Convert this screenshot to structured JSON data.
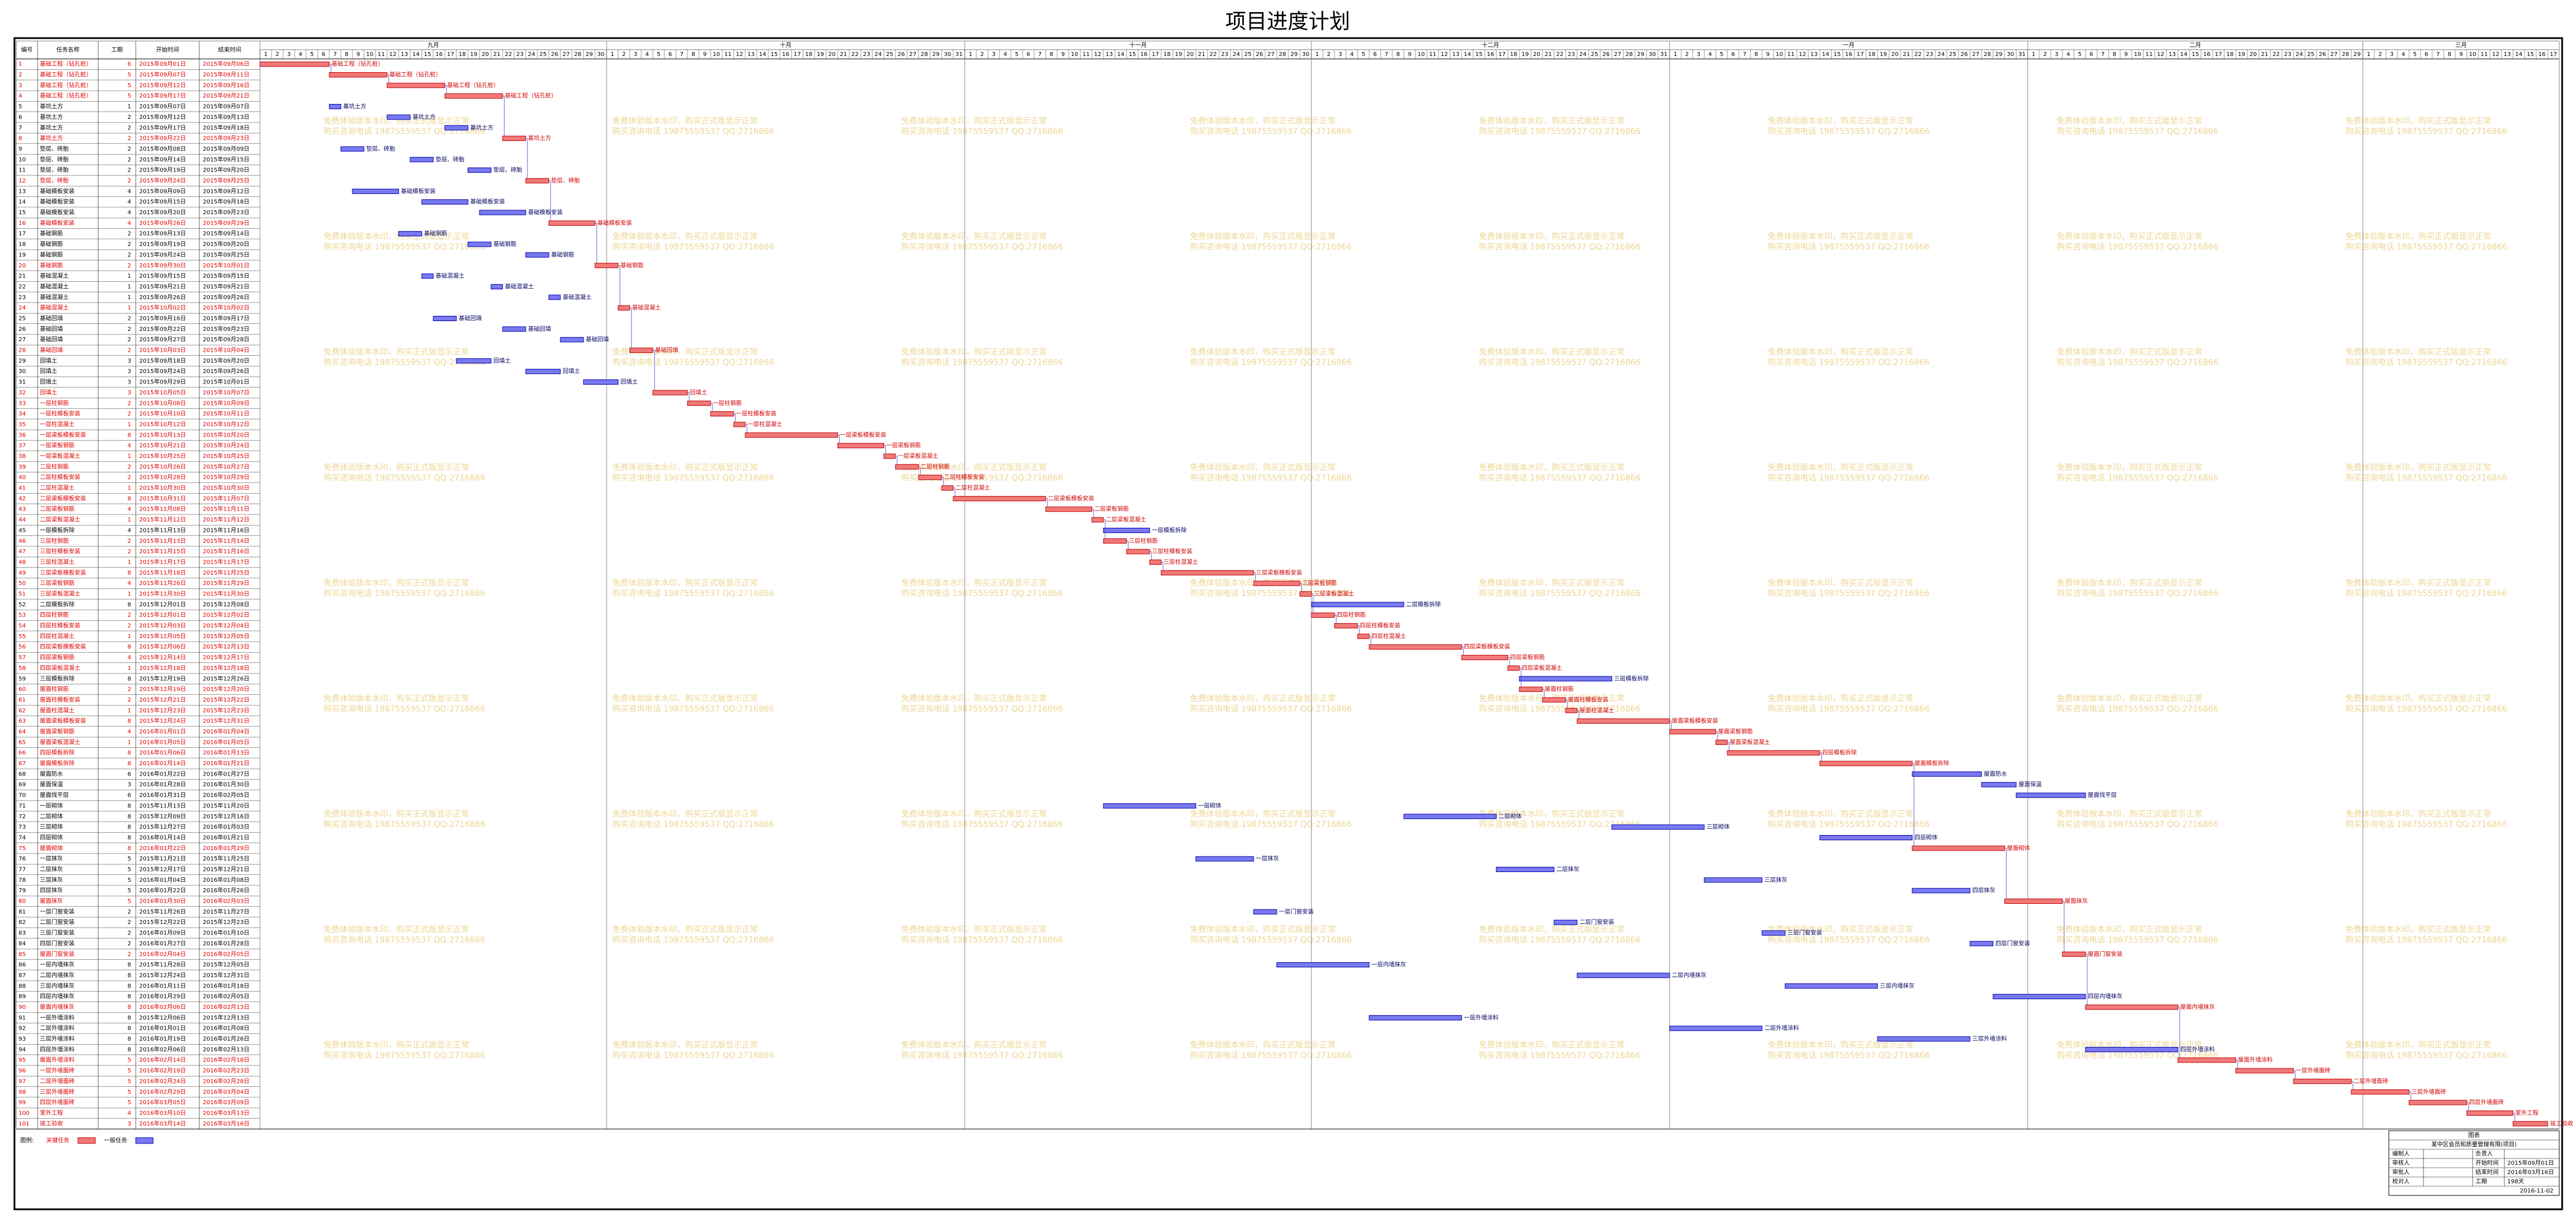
{
  "title": "项目进度计划",
  "columns": [
    "编号",
    "任务名称",
    "工期",
    "开始时间",
    "结束时间"
  ],
  "months": [
    {
      "name": "九月",
      "days": [
        1,
        2,
        3,
        4,
        5,
        6,
        7,
        8,
        9,
        10,
        11,
        12,
        13,
        14,
        15,
        16,
        17,
        18,
        19,
        20,
        21,
        22,
        23,
        24,
        25,
        26,
        27,
        28,
        29,
        30
      ]
    },
    {
      "name": "十月",
      "days": [
        1,
        2,
        3,
        4,
        5,
        6,
        7,
        8,
        9,
        10,
        11,
        12,
        13,
        14,
        15,
        16,
        17,
        18,
        19,
        20,
        21,
        22,
        23,
        24,
        25,
        26,
        27,
        28,
        29,
        30,
        31
      ]
    },
    {
      "name": "十一月",
      "days": [
        1,
        2,
        3,
        4,
        5,
        6,
        7,
        8,
        9,
        10,
        11,
        12,
        13,
        14,
        15,
        16,
        17,
        18,
        19,
        20,
        21,
        22,
        23,
        24,
        25,
        26,
        27,
        28,
        29,
        30
      ]
    },
    {
      "name": "十二月",
      "days": [
        1,
        2,
        3,
        4,
        5,
        6,
        7,
        8,
        9,
        10,
        11,
        12,
        13,
        14,
        15,
        16,
        17,
        18,
        19,
        20,
        21,
        22,
        23,
        24,
        25,
        26,
        27,
        28,
        29,
        30,
        31
      ]
    },
    {
      "name": "一月",
      "days": [
        1,
        2,
        3,
        4,
        5,
        6,
        7,
        8,
        9,
        10,
        11,
        12,
        13,
        14,
        15,
        16,
        17,
        18,
        19,
        20,
        21,
        22,
        23,
        24,
        25,
        26,
        27,
        28,
        29,
        30,
        31
      ]
    },
    {
      "name": "二月",
      "days": [
        1,
        2,
        3,
        4,
        5,
        6,
        7,
        8,
        9,
        10,
        11,
        12,
        13,
        14,
        15,
        16,
        17,
        18,
        19,
        20,
        21,
        22,
        23,
        24,
        25,
        26,
        27,
        28,
        29
      ]
    },
    {
      "name": "三月",
      "days": [
        1,
        2,
        3,
        4,
        5,
        6,
        7,
        8,
        9,
        10,
        11,
        12,
        13,
        14,
        15,
        16,
        17
      ]
    }
  ],
  "tasks": [
    [
      1,
      "基础工程（钻孔桩）",
      6,
      "2015年09月01日",
      "2015年09月06日",
      true
    ],
    [
      2,
      "基础工程（钻孔桩）",
      5,
      "2015年09月07日",
      "2015年09月11日",
      true
    ],
    [
      3,
      "基础工程（钻孔桩）",
      5,
      "2015年09月12日",
      "2015年09月16日",
      true
    ],
    [
      4,
      "基础工程（钻孔桩）",
      5,
      "2015年09月17日",
      "2015年09月21日",
      true
    ],
    [
      5,
      "基坑土方",
      1,
      "2015年09月07日",
      "2015年09月07日",
      false
    ],
    [
      6,
      "基坑土方",
      2,
      "2015年09月12日",
      "2015年09月13日",
      false
    ],
    [
      7,
      "基坑土方",
      2,
      "2015年09月17日",
      "2015年09月18日",
      false
    ],
    [
      8,
      "基坑土方",
      2,
      "2015年09月22日",
      "2015年09月23日",
      true
    ],
    [
      9,
      "垫层、砖胎",
      2,
      "2015年09月08日",
      "2015年09月09日",
      false
    ],
    [
      10,
      "垫层、砖胎",
      2,
      "2015年09月14日",
      "2015年09月15日",
      false
    ],
    [
      11,
      "垫层、砖胎",
      2,
      "2015年09月19日",
      "2015年09月20日",
      false
    ],
    [
      12,
      "垫层、砖胎",
      2,
      "2015年09月24日",
      "2015年09月25日",
      true
    ],
    [
      13,
      "基础模板安装",
      4,
      "2015年09月09日",
      "2015年09月12日",
      false
    ],
    [
      14,
      "基础模板安装",
      4,
      "2015年09月15日",
      "2015年09月18日",
      false
    ],
    [
      15,
      "基础模板安装",
      4,
      "2015年09月20日",
      "2015年09月23日",
      false
    ],
    [
      16,
      "基础模板安装",
      4,
      "2015年09月26日",
      "2015年09月29日",
      true
    ],
    [
      17,
      "基础钢筋",
      2,
      "2015年09月13日",
      "2015年09月14日",
      false
    ],
    [
      18,
      "基础钢筋",
      2,
      "2015年09月19日",
      "2015年09月20日",
      false
    ],
    [
      19,
      "基础钢筋",
      2,
      "2015年09月24日",
      "2015年09月25日",
      false
    ],
    [
      20,
      "基础钢筋",
      2,
      "2015年09月30日",
      "2015年10月01日",
      true
    ],
    [
      21,
      "基础混凝土",
      1,
      "2015年09月15日",
      "2015年09月15日",
      false
    ],
    [
      22,
      "基础混凝土",
      1,
      "2015年09月21日",
      "2015年09月21日",
      false
    ],
    [
      23,
      "基础混凝土",
      1,
      "2015年09月26日",
      "2015年09月26日",
      false
    ],
    [
      24,
      "基础混凝土",
      1,
      "2015年10月02日",
      "2015年10月02日",
      true
    ],
    [
      25,
      "基础回填",
      2,
      "2015年09月16日",
      "2015年09月17日",
      false
    ],
    [
      26,
      "基础回填",
      2,
      "2015年09月22日",
      "2015年09月23日",
      false
    ],
    [
      27,
      "基础回填",
      2,
      "2015年09月27日",
      "2015年09月28日",
      false
    ],
    [
      28,
      "基础回填",
      2,
      "2015年10月03日",
      "2015年10月04日",
      true
    ],
    [
      29,
      "回填土",
      3,
      "2015年09月18日",
      "2015年09月20日",
      false
    ],
    [
      30,
      "回填土",
      3,
      "2015年09月24日",
      "2015年09月26日",
      false
    ],
    [
      31,
      "回填土",
      3,
      "2015年09月29日",
      "2015年10月01日",
      false
    ],
    [
      32,
      "回填土",
      3,
      "2015年10月05日",
      "2015年10月07日",
      true
    ],
    [
      33,
      "一层柱钢筋",
      2,
      "2015年10月08日",
      "2015年10月09日",
      true
    ],
    [
      34,
      "一层柱模板安装",
      2,
      "2015年10月10日",
      "2015年10月11日",
      true
    ],
    [
      35,
      "一层柱混凝土",
      1,
      "2015年10月12日",
      "2015年10月12日",
      true
    ],
    [
      36,
      "一层梁板模板安装",
      8,
      "2015年10月13日",
      "2015年10月20日",
      true
    ],
    [
      37,
      "一层梁板钢筋",
      4,
      "2015年10月21日",
      "2015年10月24日",
      true
    ],
    [
      38,
      "一层梁板混凝土",
      1,
      "2015年10月25日",
      "2015年10月25日",
      true
    ],
    [
      39,
      "二层柱钢筋",
      2,
      "2015年10月26日",
      "2015年10月27日",
      true
    ],
    [
      40,
      "二层柱模板安装",
      2,
      "2015年10月28日",
      "2015年10月29日",
      true
    ],
    [
      41,
      "二层柱混凝土",
      1,
      "2015年10月30日",
      "2015年10月30日",
      true
    ],
    [
      42,
      "二层梁板模板安装",
      8,
      "2015年10月31日",
      "2015年11月07日",
      true
    ],
    [
      43,
      "二层梁板钢筋",
      4,
      "2015年11月08日",
      "2015年11月11日",
      true
    ],
    [
      44,
      "二层梁板混凝土",
      1,
      "2015年11月12日",
      "2015年11月12日",
      true
    ],
    [
      45,
      "一层模板拆除",
      4,
      "2015年11月13日",
      "2015年11月16日",
      false
    ],
    [
      46,
      "三层柱钢筋",
      2,
      "2015年11月13日",
      "2015年11月14日",
      true
    ],
    [
      47,
      "三层柱模板安装",
      2,
      "2015年11月15日",
      "2015年11月16日",
      true
    ],
    [
      48,
      "三层柱混凝土",
      1,
      "2015年11月17日",
      "2015年11月17日",
      true
    ],
    [
      49,
      "三层梁板模板安装",
      8,
      "2015年11月18日",
      "2015年11月25日",
      true
    ],
    [
      50,
      "三层梁板钢筋",
      4,
      "2015年11月26日",
      "2015年11月29日",
      true
    ],
    [
      51,
      "三层梁板混凝土",
      1,
      "2015年11月30日",
      "2015年11月30日",
      true
    ],
    [
      52,
      "二层模板拆除",
      8,
      "2015年12月01日",
      "2015年12月08日",
      false
    ],
    [
      53,
      "四层柱钢筋",
      2,
      "2015年12月01日",
      "2015年12月02日",
      true
    ],
    [
      54,
      "四层柱模板安装",
      2,
      "2015年12月03日",
      "2015年12月04日",
      true
    ],
    [
      55,
      "四层柱混凝土",
      1,
      "2015年12月05日",
      "2015年12月05日",
      true
    ],
    [
      56,
      "四层梁板模板安装",
      8,
      "2015年12月06日",
      "2015年12月13日",
      true
    ],
    [
      57,
      "四层梁板钢筋",
      4,
      "2015年12月14日",
      "2015年12月17日",
      true
    ],
    [
      58,
      "四层梁板混凝土",
      1,
      "2015年12月18日",
      "2015年12月18日",
      true
    ],
    [
      59,
      "三层模板拆除",
      8,
      "2015年12月19日",
      "2015年12月26日",
      false
    ],
    [
      60,
      "屋面柱钢筋",
      2,
      "2015年12月19日",
      "2015年12月20日",
      true
    ],
    [
      61,
      "屋面柱模板安装",
      2,
      "2015年12月21日",
      "2015年12月22日",
      true
    ],
    [
      62,
      "屋面柱混凝土",
      1,
      "2015年12月23日",
      "2015年12月23日",
      true
    ],
    [
      63,
      "屋面梁板模板安装",
      8,
      "2015年12月24日",
      "2015年12月31日",
      true
    ],
    [
      64,
      "屋面梁板钢筋",
      4,
      "2016年01月01日",
      "2016年01月04日",
      true
    ],
    [
      65,
      "屋面梁板混凝土",
      1,
      "2016年01月05日",
      "2016年01月05日",
      true
    ],
    [
      66,
      "四层模板拆除",
      8,
      "2016年01月06日",
      "2016年01月13日",
      true
    ],
    [
      67,
      "屋面模板拆除",
      8,
      "2016年01月14日",
      "2016年01月21日",
      true
    ],
    [
      68,
      "屋面防水",
      6,
      "2016年01月22日",
      "2016年01月27日",
      false
    ],
    [
      69,
      "屋面保温",
      3,
      "2016年01月28日",
      "2016年01月30日",
      false
    ],
    [
      70,
      "屋面找平层",
      6,
      "2016年01月31日",
      "2016年02月05日",
      false
    ],
    [
      71,
      "一层砌体",
      8,
      "2015年11月13日",
      "2015年11月20日",
      false
    ],
    [
      72,
      "二层砌体",
      8,
      "2015年12月09日",
      "2015年12月16日",
      false
    ],
    [
      73,
      "三层砌体",
      8,
      "2015年12月27日",
      "2016年01月03日",
      false
    ],
    [
      74,
      "四层砌体",
      8,
      "2016年01月14日",
      "2016年01月21日",
      false
    ],
    [
      75,
      "屋面砌体",
      8,
      "2016年01月22日",
      "2016年01月29日",
      true
    ],
    [
      76,
      "一层抹灰",
      5,
      "2015年11月21日",
      "2015年11月25日",
      false
    ],
    [
      77,
      "二层抹灰",
      5,
      "2015年12月17日",
      "2015年12月21日",
      false
    ],
    [
      78,
      "三层抹灰",
      5,
      "2016年01月04日",
      "2016年01月08日",
      false
    ],
    [
      79,
      "四层抹灰",
      5,
      "2016年01月22日",
      "2016年01月26日",
      false
    ],
    [
      80,
      "屋面抹灰",
      5,
      "2016年01月30日",
      "2016年02月03日",
      true
    ],
    [
      81,
      "一层门窗安装",
      2,
      "2015年11月26日",
      "2015年11月27日",
      false
    ],
    [
      82,
      "二层门窗安装",
      2,
      "2015年12月22日",
      "2015年12月23日",
      false
    ],
    [
      83,
      "三层门窗安装",
      2,
      "2016年01月09日",
      "2016年01月10日",
      false
    ],
    [
      84,
      "四层门窗安装",
      2,
      "2016年01月27日",
      "2016年01月28日",
      false
    ],
    [
      85,
      "屋面门窗安装",
      2,
      "2016年02月04日",
      "2016年02月05日",
      true
    ],
    [
      86,
      "一层内墙抹灰",
      8,
      "2015年11月28日",
      "2015年12月05日",
      false
    ],
    [
      87,
      "二层内墙抹灰",
      8,
      "2015年12月24日",
      "2015年12月31日",
      false
    ],
    [
      88,
      "三层内墙抹灰",
      8,
      "2016年01月11日",
      "2016年01月18日",
      false
    ],
    [
      89,
      "四层内墙抹灰",
      8,
      "2016年01月29日",
      "2016年02月05日",
      false
    ],
    [
      90,
      "屋面内墙抹灰",
      8,
      "2016年02月06日",
      "2016年02月13日",
      true
    ],
    [
      91,
      "一层外墙涂料",
      8,
      "2015年12月06日",
      "2015年12月13日",
      false
    ],
    [
      92,
      "二层外墙涂料",
      8,
      "2016年01月01日",
      "2016年01月08日",
      false
    ],
    [
      93,
      "三层外墙涂料",
      8,
      "2016年01月19日",
      "2016年01月26日",
      false
    ],
    [
      94,
      "四层外墙涂料",
      8,
      "2016年02月06日",
      "2016年02月13日",
      false
    ],
    [
      95,
      "屋面外墙涂料",
      5,
      "2016年02月14日",
      "2016年02月18日",
      true
    ],
    [
      96,
      "一层外墙面砖",
      5,
      "2016年02月19日",
      "2016年02月23日",
      true
    ],
    [
      97,
      "二层外墙面砖",
      5,
      "2016年02月24日",
      "2016年02月28日",
      true
    ],
    [
      98,
      "三层外墙面砖",
      5,
      "2016年02月29日",
      "2016年03月04日",
      true
    ],
    [
      99,
      "四层外墙面砖",
      5,
      "2016年03月05日",
      "2016年03月09日",
      true
    ],
    [
      100,
      "室外工程",
      4,
      "2016年03月10日",
      "2016年03月13日",
      true
    ],
    [
      101,
      "竣工验收",
      3,
      "2016年03月14日",
      "2016年03月16日",
      true
    ]
  ],
  "colors": {
    "critical": "#f07a7a",
    "critical_stroke": "#c00000",
    "normal": "#7a7af0",
    "normal_stroke": "#0000b0"
  },
  "legend": {
    "label": "图例:",
    "critical": "关键任务",
    "normal": "一般任务"
  },
  "watermark": [
    "免费体验版本水印，购买正式版显示正常",
    "购买咨询电话 19875559537 QQ:2716866"
  ],
  "info": {
    "title": "图表",
    "project": "某中区会员和质量管理有限(项目)",
    "rows": [
      [
        "编制人",
        "负责人"
      ],
      [
        "审核人",
        "开始时间",
        "2015年09月01日"
      ],
      [
        "审批人",
        "结束时间",
        "2016年03月16日"
      ],
      [
        "校对人",
        "工期",
        "198天"
      ]
    ],
    "date": "2016-11-02"
  }
}
